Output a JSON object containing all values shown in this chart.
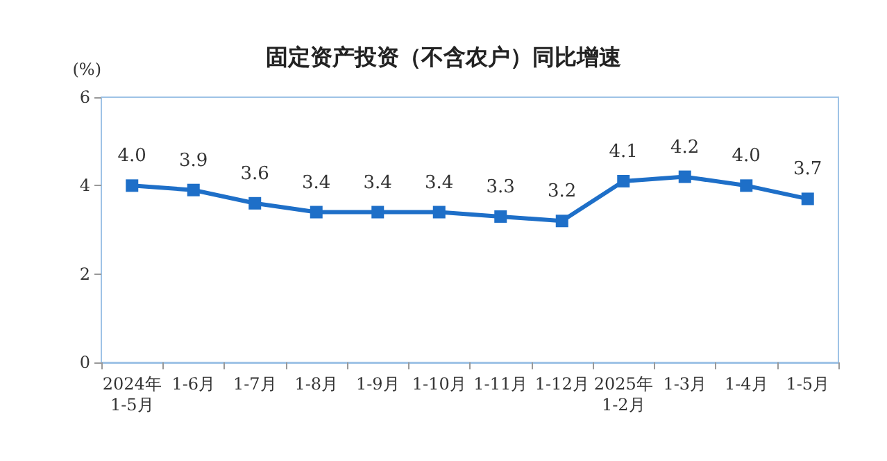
{
  "chart_data": {
    "type": "line",
    "title": "固定资产投资（不含农户）同比增速",
    "ylabel": "(%)",
    "categories": [
      "2024年\n1-5月",
      "1-6月",
      "1-7月",
      "1-8月",
      "1-9月",
      "1-10月",
      "1-11月",
      "1-12月",
      "2025年\n1-2月",
      "1-3月",
      "1-4月",
      "1-5月"
    ],
    "series": [
      {
        "color": "#1e6fc8",
        "values": [
          4.0,
          3.9,
          3.6,
          3.4,
          3.4,
          3.4,
          3.3,
          3.2,
          4.1,
          4.2,
          4.0,
          3.7
        ],
        "value_labels": [
          "4.0",
          "3.9",
          "3.6",
          "3.4",
          "3.4",
          "3.4",
          "3.3",
          "3.2",
          "4.1",
          "4.2",
          "4.0",
          "3.7"
        ]
      }
    ],
    "ylim": [
      0,
      6
    ],
    "yticks": [
      0,
      2,
      4,
      6
    ],
    "grid": false,
    "marker": "square",
    "line_style": "solid"
  }
}
